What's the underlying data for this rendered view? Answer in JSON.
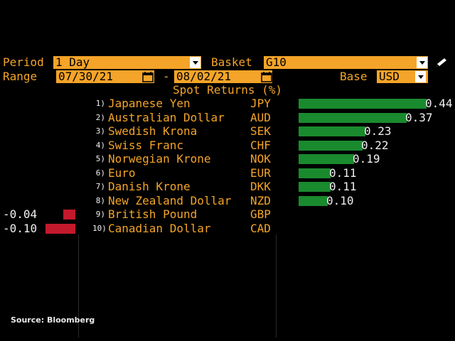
{
  "header": {
    "period_label": "Period",
    "period_value": "1 Day",
    "basket_label": "Basket",
    "basket_value": "G10",
    "range_label": "Range",
    "range_start": "07/30/21",
    "range_dash": "-",
    "range_end": "08/02/21",
    "base_label": "Base",
    "base_value": "USD"
  },
  "title": "Spot Returns (%)",
  "rows": [
    {
      "rank": "1)",
      "name": "Japanese Yen",
      "code": "JPY",
      "value": "0.44"
    },
    {
      "rank": "2)",
      "name": "Australian Dollar",
      "code": "AUD",
      "value": "0.37"
    },
    {
      "rank": "3)",
      "name": "Swedish Krona",
      "code": "SEK",
      "value": "0.23"
    },
    {
      "rank": "4)",
      "name": "Swiss Franc",
      "code": "CHF",
      "value": "0.22"
    },
    {
      "rank": "5)",
      "name": "Norwegian Krone",
      "code": "NOK",
      "value": "0.19"
    },
    {
      "rank": "6)",
      "name": "Euro",
      "code": "EUR",
      "value": "0.11"
    },
    {
      "rank": "7)",
      "name": "Danish Krone",
      "code": "DKK",
      "value": "0.11"
    },
    {
      "rank": "8)",
      "name": "New Zealand Dollar",
      "code": "NZD",
      "value": "0.10"
    },
    {
      "rank": "9)",
      "name": "British Pound",
      "code": "GBP",
      "value": "-0.04"
    },
    {
      "rank": "10)",
      "name": "Canadian Dollar",
      "code": "CAD",
      "value": "-0.10"
    }
  ],
  "chart_data": {
    "type": "bar",
    "title": "Spot Returns (%)",
    "categories": [
      "JPY",
      "AUD",
      "SEK",
      "CHF",
      "NOK",
      "EUR",
      "DKK",
      "NZD",
      "GBP",
      "CAD"
    ],
    "values": [
      0.44,
      0.37,
      0.23,
      0.22,
      0.19,
      0.11,
      0.11,
      0.1,
      -0.04,
      -0.1
    ]
  },
  "colors": {
    "accent": "#f4a428",
    "positive": "#1a8a2e",
    "negative": "#c3192c"
  },
  "icons": {
    "edit": "pencil-icon",
    "calendar": "calendar-icon",
    "dropdown": "chevron-down-icon"
  },
  "source": "Source: Bloomberg"
}
